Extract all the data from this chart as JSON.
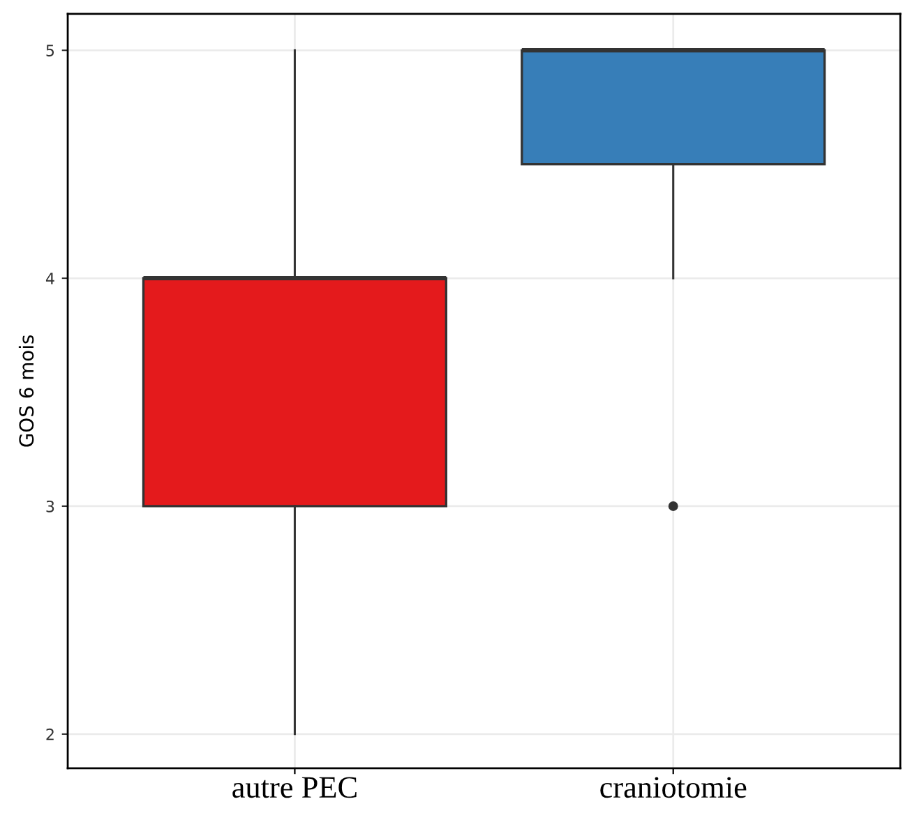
{
  "chart_data": {
    "type": "box",
    "ylabel": "GOS 6 mois",
    "categories": [
      "autre PEC",
      "craniotomie"
    ],
    "colors": [
      "#e41a1c",
      "#377eb8"
    ],
    "boxes": [
      {
        "low": 2,
        "q1": 3,
        "median": 4,
        "q3": 4,
        "high": 5
      },
      {
        "low": 4,
        "q1": 4.5,
        "median": 5,
        "q3": 5,
        "high": 5,
        "outliers": [
          3
        ]
      }
    ],
    "ylim": [
      1.85,
      5.16
    ],
    "yticks": [
      2,
      3,
      4,
      5
    ],
    "grid": true
  }
}
